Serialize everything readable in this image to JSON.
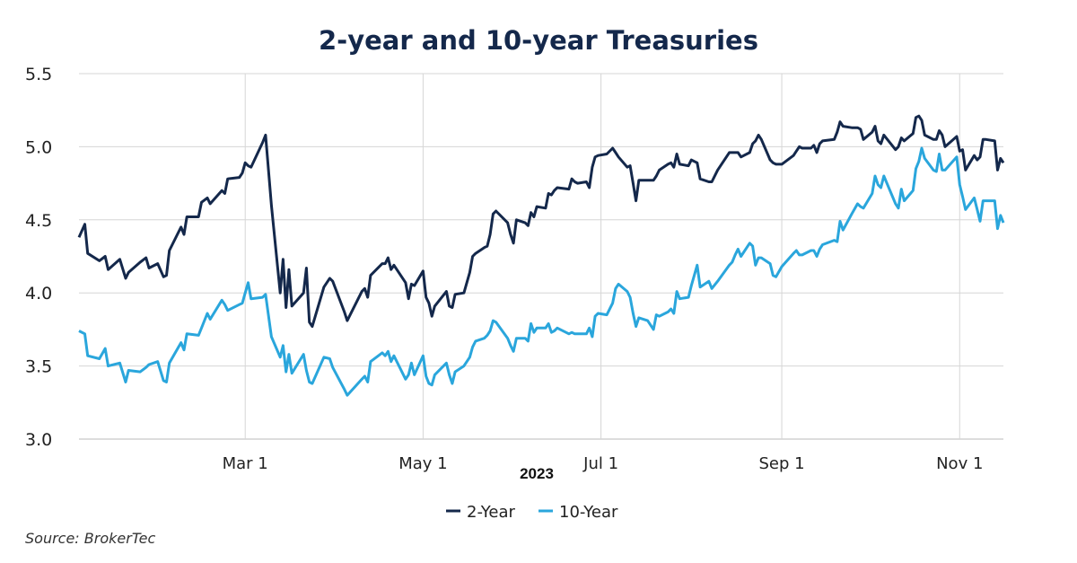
{
  "chart_data": {
    "type": "line",
    "title": "2-year and 10-year Treasuries",
    "xlabel": "2023",
    "ylabel": "",
    "ylim": [
      3.0,
      5.5
    ],
    "yticks": [
      "3.0",
      "3.5",
      "4.0",
      "4.5",
      "5.0",
      "5.5"
    ],
    "xlim": [
      "2023-01-03",
      "2023-11-16"
    ],
    "xticks": [
      {
        "date": "2023-03-01",
        "label": "Mar 1"
      },
      {
        "date": "2023-05-01",
        "label": "May 1"
      },
      {
        "date": "2023-07-01",
        "label": "Jul 1"
      },
      {
        "date": "2023-09-01",
        "label": "Sep 1"
      },
      {
        "date": "2023-11-01",
        "label": "Nov 1"
      }
    ],
    "grid": true,
    "legend_position": "bottom",
    "source": "Source: BrokerTec",
    "x": [
      "01-03",
      "01-05",
      "01-06",
      "01-10",
      "01-12",
      "01-13",
      "01-17",
      "01-19",
      "01-20",
      "01-24",
      "01-26",
      "01-27",
      "01-30",
      "02-01",
      "02-02",
      "02-03",
      "02-07",
      "02-08",
      "02-09",
      "02-13",
      "02-14",
      "02-16",
      "02-17",
      "02-21",
      "02-22",
      "02-23",
      "02-27",
      "02-28",
      "03-01",
      "03-02",
      "03-03",
      "03-07",
      "03-08",
      "03-10",
      "03-13",
      "03-14",
      "03-15",
      "03-16",
      "03-17",
      "03-21",
      "03-22",
      "03-23",
      "03-24",
      "03-28",
      "03-30",
      "03-31",
      "04-04",
      "04-05",
      "04-10",
      "04-11",
      "04-12",
      "04-13",
      "04-17",
      "04-18",
      "04-19",
      "04-20",
      "04-21",
      "04-25",
      "04-26",
      "04-27",
      "04-28",
      "05-01",
      "05-02",
      "05-03",
      "05-04",
      "05-05",
      "05-09",
      "05-10",
      "05-11",
      "05-12",
      "05-15",
      "05-17",
      "05-18",
      "05-19",
      "05-22",
      "05-23",
      "05-24",
      "05-25",
      "05-26",
      "05-30",
      "05-31",
      "06-01",
      "06-02",
      "06-05",
      "06-06",
      "06-07",
      "06-08",
      "06-09",
      "06-12",
      "06-13",
      "06-14",
      "06-15",
      "06-16",
      "06-20",
      "06-21",
      "06-22",
      "06-23",
      "06-26",
      "06-27",
      "06-28",
      "06-29",
      "06-30",
      "07-03",
      "07-05",
      "07-06",
      "07-07",
      "07-10",
      "07-11",
      "07-12",
      "07-13",
      "07-14",
      "07-17",
      "07-19",
      "07-20",
      "07-21",
      "07-24",
      "07-25",
      "07-26",
      "07-27",
      "07-28",
      "07-31",
      "08-01",
      "08-03",
      "08-04",
      "08-07",
      "08-08",
      "08-10",
      "08-14",
      "08-15",
      "08-16",
      "08-17",
      "08-18",
      "08-21",
      "08-22",
      "08-23",
      "08-24",
      "08-25",
      "08-28",
      "08-29",
      "08-30",
      "09-01",
      "09-05",
      "09-06",
      "09-07",
      "09-08",
      "09-11",
      "09-12",
      "09-13",
      "09-14",
      "09-15",
      "09-19",
      "09-20",
      "09-21",
      "09-22",
      "09-25",
      "09-27",
      "09-28",
      "09-29",
      "10-02",
      "10-03",
      "10-04",
      "10-05",
      "10-06",
      "10-10",
      "10-11",
      "10-12",
      "10-13",
      "10-16",
      "10-17",
      "10-18",
      "10-19",
      "10-20",
      "10-23",
      "10-24",
      "10-25",
      "10-26",
      "10-27",
      "10-31",
      "11-01",
      "11-02",
      "11-03",
      "11-06",
      "11-07",
      "11-08",
      "11-09",
      "11-10",
      "11-13",
      "11-14",
      "11-15",
      "11-16"
    ],
    "series": [
      {
        "name": "2-Year",
        "color": "#14284b",
        "values": [
          4.38,
          4.47,
          4.27,
          4.22,
          4.25,
          4.16,
          4.23,
          4.1,
          4.14,
          4.21,
          4.24,
          4.17,
          4.2,
          4.11,
          4.12,
          4.29,
          4.45,
          4.4,
          4.52,
          4.52,
          4.62,
          4.65,
          4.61,
          4.7,
          4.68,
          4.78,
          4.79,
          4.82,
          4.89,
          4.87,
          4.86,
          5.03,
          5.08,
          4.6,
          4.0,
          4.23,
          3.9,
          4.16,
          3.91,
          4.0,
          4.17,
          3.8,
          3.77,
          4.04,
          4.1,
          4.08,
          3.87,
          3.81,
          4.01,
          4.03,
          3.97,
          4.12,
          4.2,
          4.2,
          4.24,
          4.16,
          4.19,
          4.07,
          3.96,
          4.06,
          4.05,
          4.15,
          3.97,
          3.93,
          3.84,
          3.91,
          4.01,
          3.91,
          3.9,
          3.99,
          4.0,
          4.14,
          4.25,
          4.27,
          4.31,
          4.32,
          4.4,
          4.54,
          4.56,
          4.48,
          4.4,
          4.34,
          4.5,
          4.48,
          4.46,
          4.55,
          4.52,
          4.59,
          4.58,
          4.68,
          4.67,
          4.7,
          4.72,
          4.71,
          4.78,
          4.76,
          4.75,
          4.76,
          4.72,
          4.86,
          4.93,
          4.94,
          4.95,
          4.99,
          4.96,
          4.93,
          4.86,
          4.87,
          4.75,
          4.63,
          4.77,
          4.77,
          4.77,
          4.8,
          4.84,
          4.88,
          4.89,
          4.86,
          4.95,
          4.88,
          4.87,
          4.91,
          4.89,
          4.78,
          4.76,
          4.76,
          4.84,
          4.96,
          4.96,
          4.96,
          4.96,
          4.93,
          4.96,
          5.02,
          5.04,
          5.08,
          5.05,
          4.91,
          4.89,
          4.88,
          4.88,
          4.94,
          4.97,
          5.0,
          4.99,
          4.99,
          5.01,
          4.96,
          5.02,
          5.04,
          5.05,
          5.1,
          5.17,
          5.14,
          5.13,
          5.13,
          5.12,
          5.05,
          5.1,
          5.14,
          5.04,
          5.02,
          5.08,
          4.98,
          5.0,
          5.06,
          5.04,
          5.09,
          5.2,
          5.21,
          5.18,
          5.08,
          5.05,
          5.05,
          5.11,
          5.08,
          5.0,
          5.07,
          4.97,
          4.98,
          4.84,
          4.94,
          4.91,
          4.93,
          5.05,
          5.05,
          5.04,
          4.84,
          4.92,
          4.89
        ]
      },
      {
        "name": "10-Year",
        "color": "#2aa6dc",
        "values": [
          3.74,
          3.72,
          3.57,
          3.55,
          3.62,
          3.5,
          3.52,
          3.39,
          3.47,
          3.46,
          3.49,
          3.51,
          3.53,
          3.4,
          3.39,
          3.52,
          3.66,
          3.61,
          3.72,
          3.71,
          3.76,
          3.86,
          3.82,
          3.95,
          3.92,
          3.88,
          3.92,
          3.93,
          4.0,
          4.07,
          3.96,
          3.97,
          3.99,
          3.7,
          3.56,
          3.64,
          3.46,
          3.58,
          3.45,
          3.58,
          3.47,
          3.39,
          3.38,
          3.56,
          3.55,
          3.49,
          3.34,
          3.3,
          3.41,
          3.43,
          3.39,
          3.53,
          3.59,
          3.57,
          3.6,
          3.53,
          3.57,
          3.41,
          3.44,
          3.52,
          3.44,
          3.57,
          3.43,
          3.38,
          3.37,
          3.44,
          3.52,
          3.44,
          3.38,
          3.46,
          3.5,
          3.56,
          3.63,
          3.67,
          3.69,
          3.71,
          3.74,
          3.81,
          3.8,
          3.69,
          3.64,
          3.6,
          3.69,
          3.69,
          3.67,
          3.79,
          3.73,
          3.76,
          3.76,
          3.79,
          3.73,
          3.74,
          3.76,
          3.72,
          3.73,
          3.72,
          3.72,
          3.72,
          3.76,
          3.7,
          3.84,
          3.86,
          3.85,
          3.93,
          4.03,
          4.06,
          4.01,
          3.97,
          3.86,
          3.77,
          3.83,
          3.81,
          3.75,
          3.85,
          3.84,
          3.87,
          3.89,
          3.86,
          4.01,
          3.96,
          3.97,
          4.05,
          4.19,
          4.04,
          4.08,
          4.03,
          4.08,
          4.19,
          4.21,
          4.26,
          4.3,
          4.25,
          4.34,
          4.32,
          4.19,
          4.24,
          4.24,
          4.2,
          4.12,
          4.11,
          4.18,
          4.27,
          4.29,
          4.26,
          4.26,
          4.29,
          4.29,
          4.25,
          4.3,
          4.33,
          4.36,
          4.35,
          4.49,
          4.43,
          4.54,
          4.61,
          4.59,
          4.58,
          4.68,
          4.8,
          4.74,
          4.72,
          4.8,
          4.61,
          4.58,
          4.71,
          4.63,
          4.7,
          4.85,
          4.9,
          4.99,
          4.92,
          4.84,
          4.83,
          4.95,
          4.84,
          4.84,
          4.93,
          4.74,
          4.66,
          4.57,
          4.65,
          4.57,
          4.49,
          4.63,
          4.63,
          4.63,
          4.44,
          4.53,
          4.48
        ]
      }
    ]
  }
}
